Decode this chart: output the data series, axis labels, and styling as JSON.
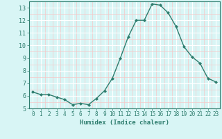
{
  "x": [
    0,
    1,
    2,
    3,
    4,
    5,
    6,
    7,
    8,
    9,
    10,
    11,
    12,
    13,
    14,
    15,
    16,
    17,
    18,
    19,
    20,
    21,
    22,
    23
  ],
  "y": [
    6.3,
    6.1,
    6.1,
    5.9,
    5.7,
    5.3,
    5.4,
    5.3,
    5.8,
    6.4,
    7.4,
    9.0,
    10.7,
    12.0,
    12.0,
    13.3,
    13.2,
    12.6,
    11.5,
    9.9,
    9.1,
    8.6,
    7.4,
    7.1
  ],
  "line_color": "#2e7d6e",
  "marker": "D",
  "marker_size": 2,
  "xlabel": "Humidex (Indice chaleur)",
  "ylim": [
    5,
    13.5
  ],
  "xlim": [
    -0.5,
    23.5
  ],
  "yticks": [
    5,
    6,
    7,
    8,
    9,
    10,
    11,
    12,
    13
  ],
  "xticks": [
    0,
    1,
    2,
    3,
    4,
    5,
    6,
    7,
    8,
    9,
    10,
    11,
    12,
    13,
    14,
    15,
    16,
    17,
    18,
    19,
    20,
    21,
    22,
    23
  ],
  "bg_color": "#d8f5f5",
  "grid_color_major": "#ffffff",
  "grid_color_minor": "#f5c8c8"
}
